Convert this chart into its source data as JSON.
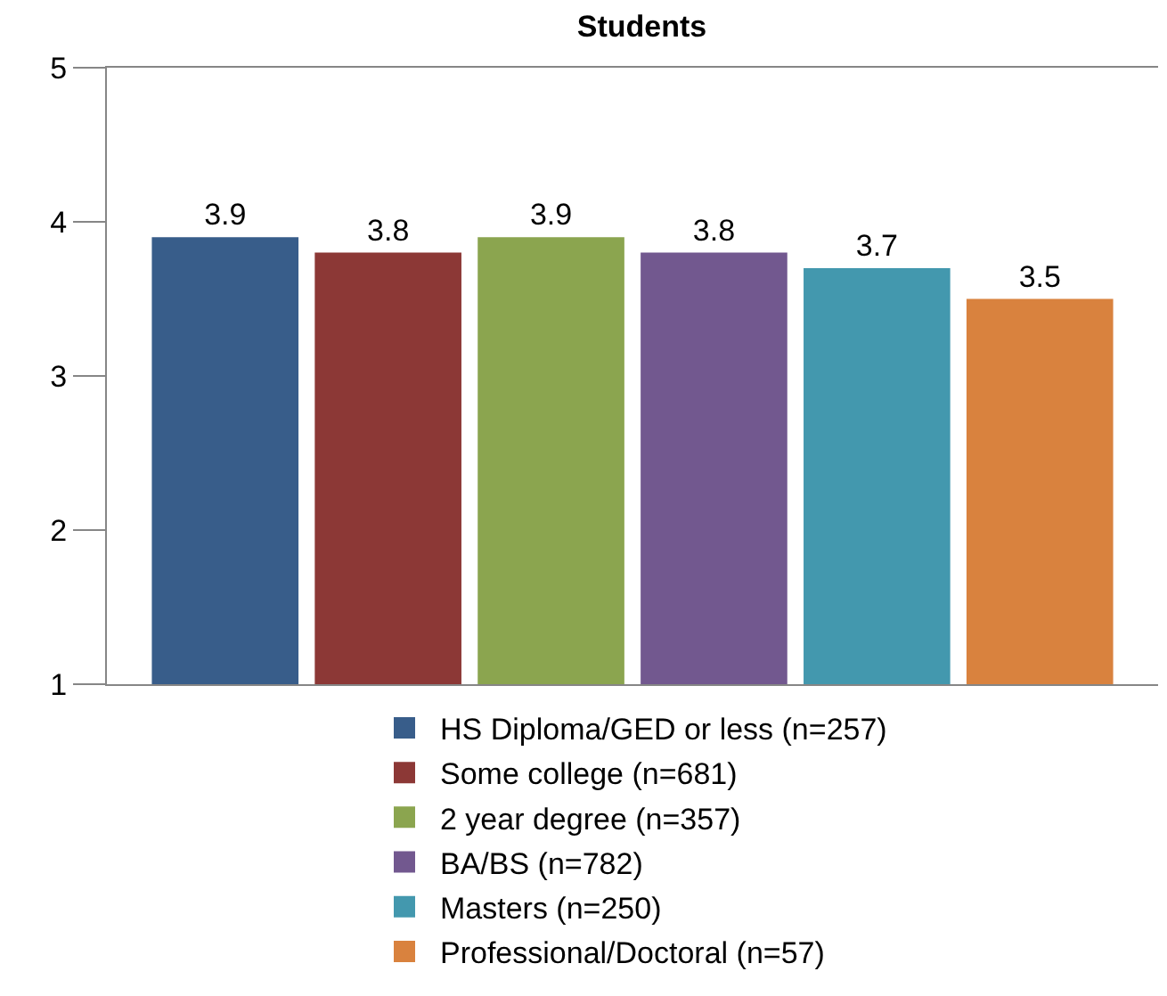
{
  "chart_data": {
    "type": "bar",
    "title": "Students",
    "categories": [
      null
    ],
    "series": [
      {
        "name": "HS Diploma/GED or less (n=257)",
        "color": "#385d8a",
        "values": [
          3.9
        ]
      },
      {
        "name": "Some college (n=681)",
        "color": "#8c3836",
        "values": [
          3.8
        ]
      },
      {
        "name": "2 year degree (n=357)",
        "color": "#8ba54f",
        "values": [
          3.9
        ]
      },
      {
        "name": "BA/BS (n=782)",
        "color": "#72588f",
        "values": [
          3.8
        ]
      },
      {
        "name": "Masters (n=250)",
        "color": "#4398ae",
        "values": [
          3.7
        ]
      },
      {
        "name": "Professional/Doctoral (n=57)",
        "color": "#d9823e",
        "values": [
          3.5
        ]
      }
    ],
    "ylim": [
      1,
      5
    ],
    "yticks": [
      1,
      2,
      3,
      4,
      5
    ],
    "grid": false,
    "legend": "bottom",
    "data_labels": true
  }
}
